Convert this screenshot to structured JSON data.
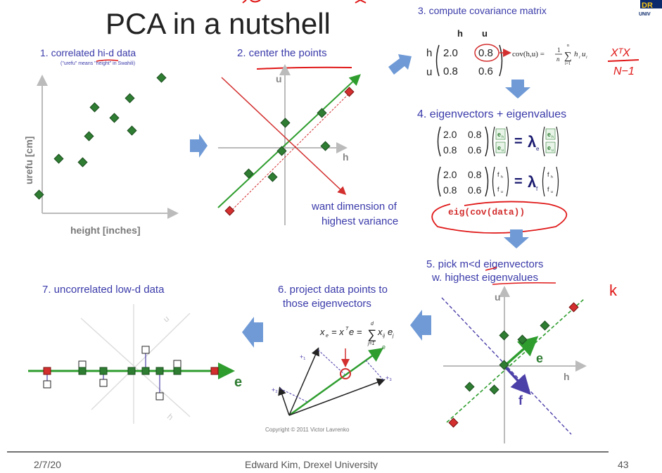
{
  "slide": {
    "title": "PCA in a nutshell",
    "logo_text": "DR",
    "logo_subtext": "UNIV",
    "footer": {
      "date": "2/7/20",
      "author": "Edward Kim, Drexel University",
      "page": "43"
    },
    "copyright": "Copyright © 2011 Victor Lavrenko"
  },
  "steps": {
    "s1": {
      "title": "1. correlated hi-d data",
      "subtitle": "(\"urefu\" means \"height\" in Swahili)",
      "xlabel": "height [inches]",
      "ylabel": "urefu [cm]"
    },
    "s2": {
      "title": "2. center the points",
      "axis_u": "u",
      "axis_h": "h",
      "note_line1": "want dimension of",
      "note_line2": "highest variance"
    },
    "s3": {
      "title": "3. compute covariance matrix",
      "col_h": "h",
      "col_u": "u",
      "row_h": "h",
      "row_u": "u",
      "m11": "2.0",
      "m12": "0.8",
      "m21": "0.8",
      "m22": "0.6",
      "formula_lhs": "cov(h,u) =",
      "formula_frac_num": "1",
      "formula_frac_den": "n",
      "formula_sum": "∑",
      "formula_sum_top": "n",
      "formula_sum_bottom": "i=1",
      "formula_term": "h",
      "formula_sub_i": "i",
      "formula_term2": "u",
      "handwritten_top": "XᵀX",
      "handwritten_bottom": "N−1"
    },
    "s4": {
      "title": "4. eigenvectors + eigenvalues",
      "m11": "2.0",
      "m12": "0.8",
      "m21": "0.8",
      "m22": "0.6",
      "v1_top": "e",
      "v1_bottom": "e",
      "sub_h": "h",
      "sub_u": "u",
      "v2_top": "f",
      "v2_bottom": "f",
      "equals": "=",
      "lambda": "λ",
      "lambda_e_sub": "e",
      "lambda_f_sub": "f",
      "code": "eig(cov(data))"
    },
    "s5": {
      "title_line1": "5. pick m<d eigenvectors",
      "title_line2": "w. highest eigenvalues",
      "axis_u": "u",
      "axis_h": "h",
      "vec_e": "e",
      "vec_f": "f",
      "handwritten_k": "k"
    },
    "s6": {
      "title_line1": "6. project data points to",
      "title_line2": "those eigenvectors",
      "formula_lhs": "x",
      "formula_lhs_sub": "e",
      "formula_rhs": "= x",
      "formula_T": "T",
      "formula_e": "e =",
      "formula_sum": "∑",
      "formula_sum_top": "d",
      "formula_sum_bottom": "j=1",
      "formula_tail": "x",
      "formula_tail_sub": "ij",
      "formula_tail_e": "e",
      "formula_tail_e_sub": "j",
      "label_x1": "+₁",
      "label_x2": "+₂",
      "label_x3": "+₃",
      "label_e": "e"
    },
    "s7": {
      "title": "7. uncorrelated low-d data",
      "label_e": "e",
      "label_u": "u",
      "label_h": "h"
    }
  },
  "colors": {
    "title_blue": "#3a3aaa",
    "green": "#2e7d32",
    "red": "#d32f2f",
    "arrow_blue": "#6f9ad6",
    "purple": "#4b3fa8",
    "ink_red": "#e01818"
  }
}
